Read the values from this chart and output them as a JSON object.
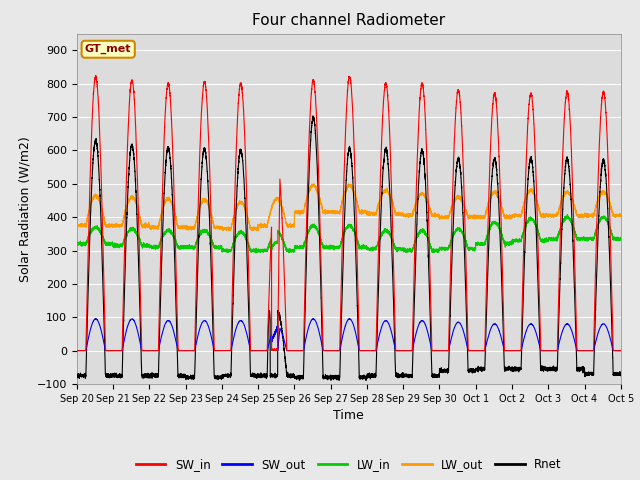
{
  "title": "Four channel Radiometer",
  "xlabel": "Time",
  "ylabel": "Solar Radiation (W/m2)",
  "ylim": [
    -100,
    950
  ],
  "yticks": [
    -100,
    0,
    100,
    200,
    300,
    400,
    500,
    600,
    700,
    800,
    900
  ],
  "legend_label": "GT_met",
  "series_colors": {
    "SW_in": "#ff0000",
    "SW_out": "#0000ff",
    "LW_in": "#00cc00",
    "LW_out": "#ff9900",
    "Rnet": "#000000"
  },
  "fig_facecolor": "#e8e8e8",
  "plot_facecolor": "#dcdcdc",
  "grid_color": "#ffffff",
  "n_days": 15,
  "x_tick_labels": [
    "Sep 20",
    "Sep 21",
    "Sep 22",
    "Sep 23",
    "Sep 24",
    "Sep 25",
    "Sep 26",
    "Sep 27",
    "Sep 28",
    "Sep 29",
    "Sep 30",
    "Oct 1",
    "Oct 2",
    "Oct 3",
    "Oct 4",
    "Oct 5"
  ],
  "SW_in_peaks": [
    820,
    810,
    800,
    805,
    800,
    575,
    810,
    820,
    800,
    800,
    780,
    770,
    770,
    775,
    775
  ],
  "SW_out_peaks": [
    95,
    95,
    90,
    90,
    90,
    75,
    95,
    95,
    90,
    90,
    85,
    80,
    80,
    80,
    80
  ],
  "LW_in_base": [
    320,
    315,
    310,
    310,
    300,
    300,
    310,
    310,
    305,
    300,
    305,
    320,
    330,
    335,
    335
  ],
  "LW_in_peak_add": [
    50,
    50,
    50,
    50,
    55,
    55,
    65,
    65,
    55,
    60,
    60,
    65,
    65,
    65,
    65
  ],
  "LW_out_base": [
    375,
    375,
    370,
    368,
    365,
    375,
    415,
    415,
    410,
    405,
    400,
    400,
    405,
    405,
    405
  ],
  "LW_out_peak_add": [
    90,
    85,
    85,
    85,
    80,
    80,
    80,
    80,
    70,
    65,
    60,
    75,
    75,
    70,
    70
  ],
  "Rnet_peaks": [
    630,
    615,
    610,
    605,
    600,
    120,
    700,
    605,
    605,
    600,
    575,
    575,
    575,
    575,
    570
  ],
  "Rnet_night": [
    -75,
    -75,
    -75,
    -80,
    -75,
    -75,
    -80,
    -80,
    -75,
    -75,
    -60,
    -55,
    -55,
    -55,
    -70
  ],
  "figsize": [
    6.4,
    4.8
  ],
  "dpi": 100
}
